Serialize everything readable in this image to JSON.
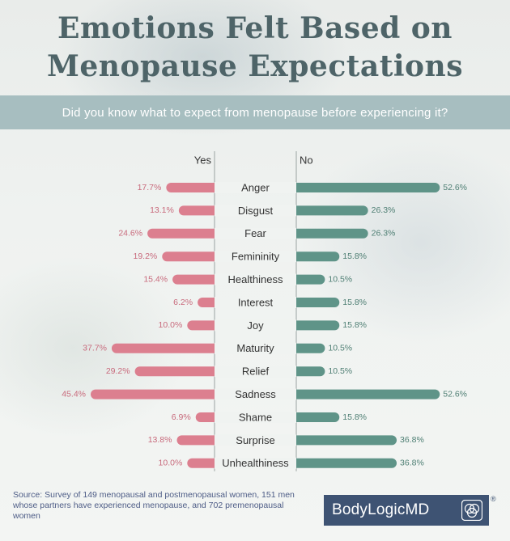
{
  "header": {
    "title_line1": "Emotions Felt Based on",
    "title_line2": "Menopause Expectations",
    "question": "Did you know what to expect from menopause before experiencing it?"
  },
  "chart_data": {
    "type": "bar",
    "orientation": "horizontal-diverging",
    "left_header": "Yes",
    "right_header": "No",
    "categories": [
      "Anger",
      "Disgust",
      "Fear",
      "Femininity",
      "Healthiness",
      "Interest",
      "Joy",
      "Maturity",
      "Relief",
      "Sadness",
      "Shame",
      "Surprise",
      "Unhealthiness"
    ],
    "series": [
      {
        "name": "Yes",
        "values": [
          17.7,
          13.1,
          24.6,
          19.2,
          15.4,
          6.2,
          10.0,
          37.7,
          29.2,
          45.4,
          6.9,
          13.8,
          10.0
        ],
        "labels": [
          "17.7%",
          "13.1%",
          "24.6%",
          "19.2%",
          "15.4%",
          "6.2%",
          "10.0%",
          "37.7%",
          "29.2%",
          "45.4%",
          "6.9%",
          "13.8%",
          "10.0%"
        ],
        "color": "#dc7f8f"
      },
      {
        "name": "No",
        "values": [
          52.6,
          26.3,
          26.3,
          15.8,
          10.5,
          15.8,
          15.8,
          10.5,
          10.5,
          52.6,
          15.8,
          36.8,
          36.8
        ],
        "labels": [
          "52.6%",
          "26.3%",
          "26.3%",
          "15.8%",
          "10.5%",
          "15.8%",
          "15.8%",
          "10.5%",
          "10.5%",
          "52.6%",
          "15.8%",
          "36.8%",
          "36.8%"
        ],
        "color": "#5f9488"
      }
    ],
    "xlim": [
      0,
      55
    ],
    "grid": false,
    "legend": "none"
  },
  "footer": {
    "source": "Source: Survey of 149 menopausal and postmenopausal women, 151 men whose partners have experienced menopause, and 702 premenopausal women",
    "brand": "BodyLogicMD",
    "registered_mark": "®"
  },
  "colors": {
    "title": "#4e6468",
    "band": "#a7bec0",
    "yes_bar": "#dc7f8f",
    "no_bar": "#5f9488",
    "divider": "#9aa3a2",
    "brand_bg": "#3e5373"
  }
}
